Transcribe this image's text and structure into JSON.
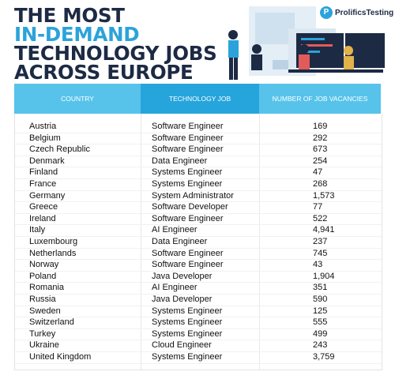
{
  "header": {
    "title_lines": [
      "THE MOST",
      "IN-DEMAND",
      "TECHNOLOGY JOBS",
      "ACROSS EUROPE"
    ],
    "logo": "ProlificsTesting"
  },
  "table": {
    "columns": [
      "COUNTRY",
      "TECHNOLOGY JOB",
      "NUMBER OF JOB VACANCIES"
    ],
    "rows": [
      [
        "Austria",
        "Software Engineer",
        "169"
      ],
      [
        "Belgium",
        "Software Engineer",
        "292"
      ],
      [
        "Czech Republic",
        "Software Engineer",
        "673"
      ],
      [
        "Denmark",
        "Data Engineer",
        "254"
      ],
      [
        "Finland",
        "Systems Engineer",
        "47"
      ],
      [
        "France",
        "Systems Engineer",
        "268"
      ],
      [
        "Germany",
        "System Administrator",
        "1,573"
      ],
      [
        "Greece",
        "Software Developer",
        "77"
      ],
      [
        "Ireland",
        "Software Engineer",
        "522"
      ],
      [
        "Italy",
        "AI Engineer",
        "4,941"
      ],
      [
        "Luxembourg",
        "Data Engineer",
        "237"
      ],
      [
        "Netherlands",
        "Software Engineer",
        "745"
      ],
      [
        "Norway",
        "Software Engineer",
        "43"
      ],
      [
        "Poland",
        "Java Developer",
        "1,904"
      ],
      [
        "Romania",
        "AI Engineer",
        "351"
      ],
      [
        "Russia",
        "Java Developer",
        "590"
      ],
      [
        "Sweden",
        "Systems Engineer",
        "125"
      ],
      [
        "Switzerland",
        "Systems Engineer",
        "555"
      ],
      [
        "Turkey",
        "Systems Engineer",
        "499"
      ],
      [
        "Ukraine",
        "Cloud Engineer",
        "243"
      ],
      [
        "United Kingdom",
        "Systems Engineer",
        "3,759"
      ]
    ]
  }
}
